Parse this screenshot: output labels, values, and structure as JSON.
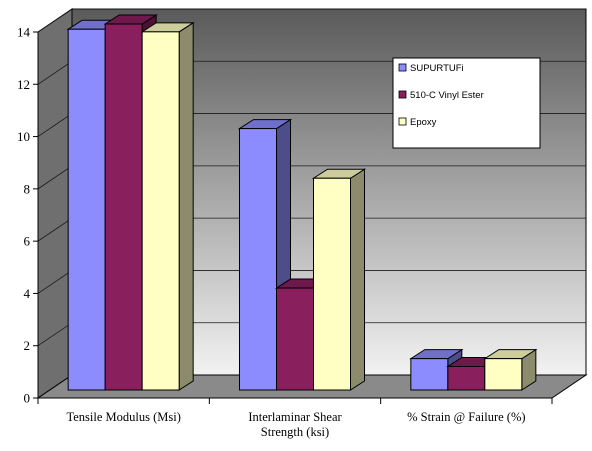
{
  "chart_data": {
    "type": "bar",
    "style": "3d-clustered-column",
    "categories": [
      [
        "Tensile Modulus (Msi)"
      ],
      [
        "Interlaminar Shear",
        "Strength (ksi)"
      ],
      [
        "% Strain @ Failure (%)"
      ]
    ],
    "series": [
      {
        "name": "SUPURTUFi",
        "values": [
          13.8,
          10.0,
          1.2
        ],
        "color": "#8c8cff"
      },
      {
        "name": "510-C Vinyl Ester",
        "values": [
          14.0,
          3.9,
          0.9
        ],
        "color": "#8a1f5e"
      },
      {
        "name": "Epoxy",
        "values": [
          13.7,
          8.1,
          1.2
        ],
        "color": "#ffffc4"
      }
    ],
    "y_ticks": [
      "0",
      "2",
      "4",
      "6",
      "8",
      "10",
      "12",
      "14"
    ],
    "ylim": [
      0,
      14
    ],
    "grid": true,
    "legend_position": "top-right",
    "colors": {
      "wall_top": "#5a5a5a",
      "wall_bottom": "#f2f2f2",
      "floor": "#8a8a8a",
      "gridline": "#1a1a1a"
    }
  }
}
